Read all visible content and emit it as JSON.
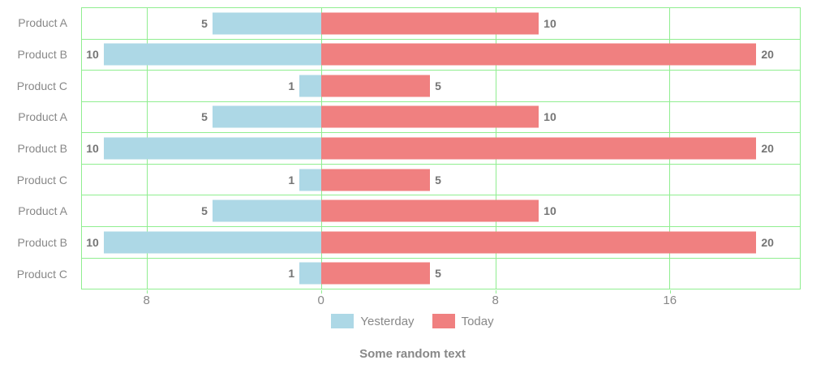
{
  "chart_data": {
    "type": "bar",
    "orientation": "horizontal",
    "title": "Some random text",
    "categories": [
      "Product A",
      "Product B",
      "Product C",
      "Product A",
      "Product B",
      "Product C",
      "Product A",
      "Product B",
      "Product C"
    ],
    "series": [
      {
        "name": "Yesterday",
        "color": "#add8e6",
        "direction": "left",
        "values": [
          5,
          10,
          1,
          5,
          10,
          1,
          5,
          10,
          1
        ]
      },
      {
        "name": "Today",
        "color": "#f08080",
        "direction": "right",
        "values": [
          10,
          20,
          5,
          10,
          20,
          5,
          10,
          20,
          5
        ]
      }
    ],
    "x_axis": {
      "min": -11,
      "max": 22,
      "ticks": [
        -8,
        0,
        8,
        16
      ],
      "tick_labels": [
        "8",
        "0",
        "8",
        "16"
      ]
    },
    "legend": {
      "position": "bottom"
    },
    "grid": true,
    "colors": {
      "grid": "#90ee90",
      "category_label": "#888888",
      "value_label": "#757575",
      "tick_label": "#888888",
      "title": "#888888"
    }
  }
}
